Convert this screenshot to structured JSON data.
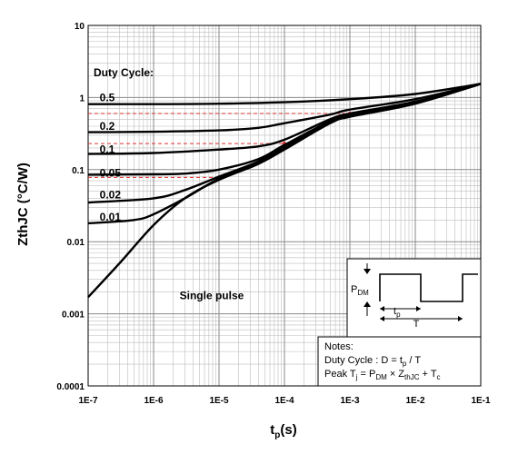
{
  "chart_data": {
    "type": "line",
    "xscale": "log",
    "yscale": "log",
    "xlim": [
      1e-07,
      0.1
    ],
    "ylim": [
      0.0001,
      10
    ],
    "xlabel_base": "t",
    "xlabel_sub": "p",
    "xlabel_tail": "(s)",
    "ylabel": "ZthJC (°C/W)",
    "x_ticks": [
      {
        "v": 1e-07,
        "label": "1E-7"
      },
      {
        "v": 1e-06,
        "label": "1E-6"
      },
      {
        "v": 1e-05,
        "label": "1E-5"
      },
      {
        "v": 0.0001,
        "label": "1E-4"
      },
      {
        "v": 0.001,
        "label": "1E-3"
      },
      {
        "v": 0.01,
        "label": "1E-2"
      },
      {
        "v": 0.1,
        "label": "1E-1"
      }
    ],
    "y_ticks": [
      {
        "v": 10,
        "label": "10"
      },
      {
        "v": 1,
        "label": "1"
      },
      {
        "v": 0.1,
        "label": "0.1"
      },
      {
        "v": 0.01,
        "label": "0.01"
      },
      {
        "v": 0.001,
        "label": "0.001"
      },
      {
        "v": 0.0001,
        "label": "0.0001"
      }
    ],
    "grid": true,
    "line_color": "#000000",
    "grid_color": "#bdbdbd",
    "guide_color": "#e03030",
    "legend_title": "Duty Cycle:",
    "series": [
      {
        "name": "0.5",
        "label_at": [
          1.5e-07,
          1.0
        ],
        "points": [
          [
            1e-07,
            0.81
          ],
          [
            1e-06,
            0.81
          ],
          [
            1e-05,
            0.82
          ],
          [
            0.0001,
            0.86
          ],
          [
            0.001,
            0.95
          ],
          [
            0.01,
            1.12
          ],
          [
            0.1,
            1.55
          ]
        ]
      },
      {
        "name": "0.2",
        "label_at": [
          1.5e-07,
          0.4
        ],
        "points": [
          [
            1e-07,
            0.33
          ],
          [
            1e-06,
            0.335
          ],
          [
            1e-05,
            0.35
          ],
          [
            4e-05,
            0.38
          ],
          [
            0.0001,
            0.44
          ],
          [
            0.0005,
            0.58
          ],
          [
            0.001,
            0.68
          ],
          [
            0.01,
            0.95
          ],
          [
            0.1,
            1.55
          ]
        ]
      },
      {
        "name": "0.1",
        "label_at": [
          1.5e-07,
          0.19
        ],
        "points": [
          [
            1e-07,
            0.165
          ],
          [
            1e-06,
            0.17
          ],
          [
            1e-05,
            0.19
          ],
          [
            4e-05,
            0.21
          ],
          [
            0.0001,
            0.26
          ],
          [
            0.0005,
            0.5
          ],
          [
            0.001,
            0.6
          ],
          [
            0.01,
            0.88
          ],
          [
            0.1,
            1.55
          ]
        ]
      },
      {
        "name": "0.05",
        "label_at": [
          1.5e-07,
          0.09
        ],
        "points": [
          [
            1e-07,
            0.085
          ],
          [
            1e-06,
            0.086
          ],
          [
            3e-06,
            0.088
          ],
          [
            1e-05,
            0.1
          ],
          [
            4e-05,
            0.14
          ],
          [
            0.0001,
            0.22
          ],
          [
            0.0005,
            0.47
          ],
          [
            0.001,
            0.57
          ],
          [
            0.01,
            0.85
          ],
          [
            0.1,
            1.55
          ]
        ]
      },
      {
        "name": "0.02",
        "label_at": [
          1.5e-07,
          0.045
        ],
        "points": [
          [
            1e-07,
            0.035
          ],
          [
            1e-06,
            0.04
          ],
          [
            3e-06,
            0.052
          ],
          [
            1e-05,
            0.08
          ],
          [
            4e-05,
            0.13
          ],
          [
            0.0001,
            0.21
          ],
          [
            0.0005,
            0.46
          ],
          [
            0.001,
            0.56
          ],
          [
            0.01,
            0.84
          ],
          [
            0.1,
            1.55
          ]
        ]
      },
      {
        "name": "0.01",
        "label_at": [
          1.5e-07,
          0.022
        ],
        "points": [
          [
            1e-07,
            0.018
          ],
          [
            5e-07,
            0.02
          ],
          [
            1e-06,
            0.024
          ],
          [
            3e-06,
            0.04
          ],
          [
            1e-05,
            0.075
          ],
          [
            4e-05,
            0.125
          ],
          [
            0.0001,
            0.2
          ],
          [
            0.0005,
            0.45
          ],
          [
            0.001,
            0.55
          ],
          [
            0.01,
            0.83
          ],
          [
            0.1,
            1.55
          ]
        ]
      },
      {
        "name": "Single pulse",
        "label_at": [
          2.5e-06,
          0.0018
        ],
        "points": [
          [
            1e-07,
            0.0017
          ],
          [
            3e-07,
            0.005
          ],
          [
            1e-06,
            0.017
          ],
          [
            3e-06,
            0.04
          ],
          [
            1e-05,
            0.072
          ],
          [
            4e-05,
            0.12
          ],
          [
            0.0001,
            0.19
          ],
          [
            0.0005,
            0.44
          ],
          [
            0.001,
            0.54
          ],
          [
            0.01,
            0.82
          ],
          [
            0.1,
            1.55
          ]
        ]
      }
    ],
    "guides": [
      {
        "y": 0.6,
        "x_to": 0.001
      },
      {
        "y": 0.23,
        "x_to": 0.0001
      },
      {
        "y": 0.078,
        "x_to": 1e-05
      }
    ],
    "notes": {
      "title": "Notes:",
      "line1": "Duty Cycle : D = t",
      "line1_sub": "p",
      "line1_tail": " / T",
      "line2_a": "Peak T",
      "line2_a_sub": "j",
      "line2_b": " = P",
      "line2_b_sub": "DM",
      "line2_c": " × Z",
      "line2_c_sub": "thJC",
      "line2_d": " + T",
      "line2_d_sub": "c"
    },
    "pulse_diagram": {
      "pdm_label": "P",
      "pdm_sub": "DM",
      "tp_label": "t",
      "tp_sub": "p",
      "t_label": "T"
    }
  }
}
